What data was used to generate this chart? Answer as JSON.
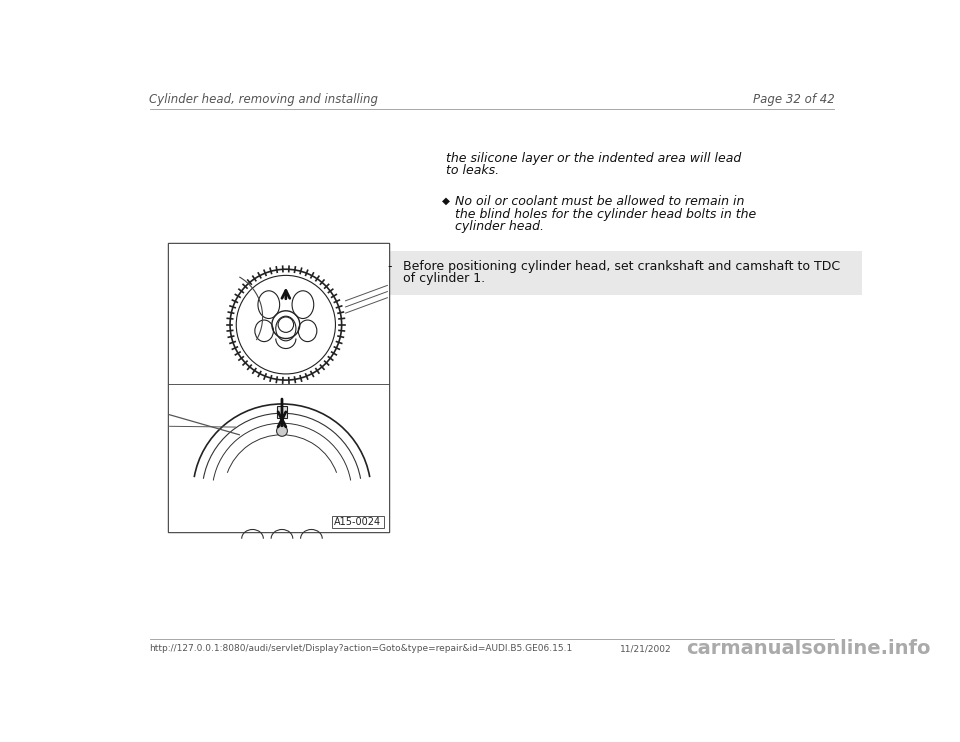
{
  "bg_color": "#ffffff",
  "header_left": "Cylinder head, removing and installing",
  "header_right": "Page 32 of 42",
  "footer_url": "http://127.0.0.1:8080/audi/servlet/Display?action=Goto&type=repair&id=AUDI.B5.GE06.15.1",
  "footer_date": "11/21/2002",
  "footer_watermark": "carmanualsonline.info",
  "text_block1_line1": "the silicone layer or the indented area will lead",
  "text_block1_line2": "to leaks.",
  "bullet_char": "◆",
  "text_block2_line1": "No oil or coolant must be allowed to remain in",
  "text_block2_line2": "the blind holes for the cylinder head bolts in the",
  "text_block2_line3": "cylinder head.",
  "dash_label": "-",
  "text_block3_line1": "Before positioning cylinder head, set crankshaft and camshaft to TDC",
  "text_block3_line2": "of cylinder 1.",
  "image_label": "A15-0024",
  "header_fontsize": 8.5,
  "body_fontsize": 9,
  "footer_fontsize": 6.5,
  "watermark_fontsize": 14
}
